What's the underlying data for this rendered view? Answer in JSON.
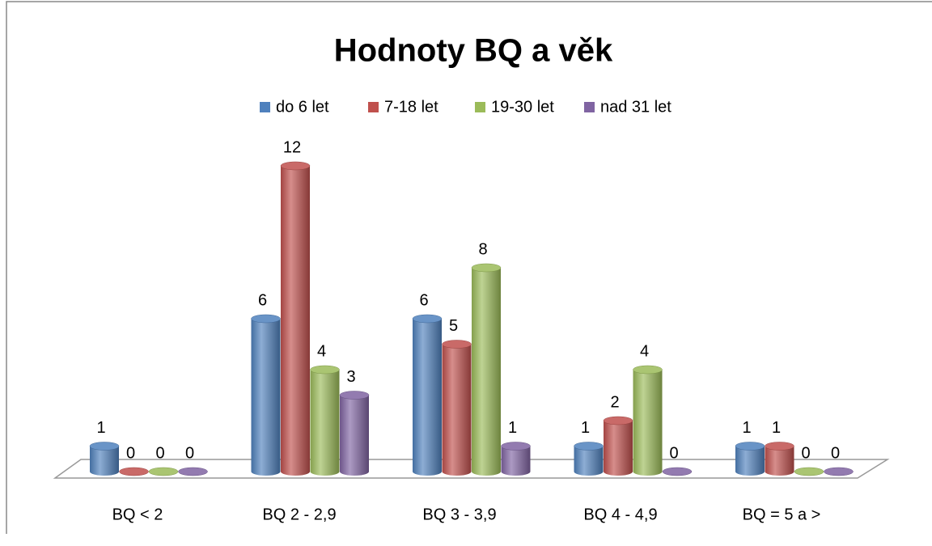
{
  "chart_data": {
    "type": "bar",
    "title": "Hodnoty BQ a věk",
    "categories": [
      "BQ < 2",
      "BQ 2 - 2,9",
      "BQ 3 - 3,9",
      "BQ 4 - 4,9",
      "BQ = 5 a >"
    ],
    "series": [
      {
        "name": "do 6 let",
        "color": "#4f81bd",
        "values": [
          1,
          6,
          6,
          1,
          1
        ]
      },
      {
        "name": "7-18 let",
        "color": "#c0504d",
        "values": [
          0,
          12,
          5,
          2,
          1
        ]
      },
      {
        "name": "19-30 let",
        "color": "#9bbb59",
        "values": [
          0,
          4,
          8,
          4,
          0
        ]
      },
      {
        "name": "nad 31 let",
        "color": "#8064a2",
        "values": [
          0,
          3,
          1,
          0,
          0
        ]
      }
    ],
    "legend": "top"
  }
}
